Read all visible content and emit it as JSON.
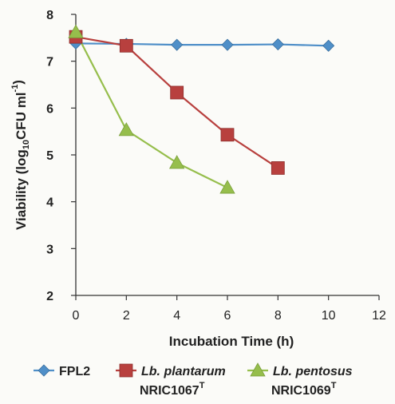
{
  "chart_data": {
    "type": "line",
    "title": "",
    "xlabel": "Incubation Time (h)",
    "ylabel_parts": [
      "Viability (log",
      "10",
      "CFU  ml",
      "-1",
      ")"
    ],
    "xlim": [
      0,
      12
    ],
    "ylim": [
      2,
      8
    ],
    "xticks": [
      0,
      2,
      4,
      6,
      8,
      10,
      12
    ],
    "yticks": [
      2,
      3,
      4,
      5,
      6,
      7,
      8
    ],
    "grid": false,
    "legend_position": "bottom",
    "series": [
      {
        "name": "FPL2",
        "name_line2": "",
        "color": "#4f8fc8",
        "marker": "diamond",
        "x": [
          0,
          2,
          4,
          6,
          8,
          10
        ],
        "y": [
          7.38,
          7.37,
          7.35,
          7.35,
          7.36,
          7.33
        ]
      },
      {
        "name": "Lb. plantarum",
        "name_line2": "NRIC1067",
        "name_line2_sup": "T",
        "color": "#b8403e",
        "marker": "square",
        "x": [
          0,
          2,
          4,
          6,
          8
        ],
        "y": [
          7.52,
          7.33,
          6.33,
          5.43,
          4.72
        ]
      },
      {
        "name": "Lb. pentosus",
        "name_line2": "NRIC1069",
        "name_line2_sup": "T",
        "color": "#96be4c",
        "marker": "triangle",
        "x": [
          0,
          2,
          4,
          6
        ],
        "y": [
          7.62,
          5.53,
          4.83,
          4.3
        ]
      }
    ]
  }
}
